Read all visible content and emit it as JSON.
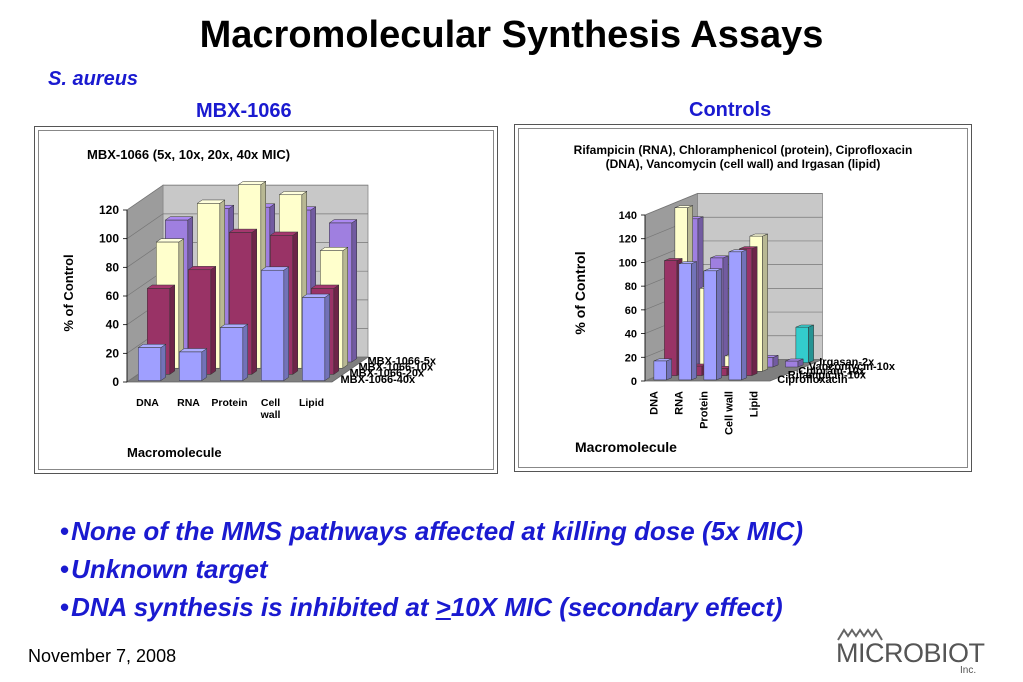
{
  "slide": {
    "title": "Macromolecular Synthesis Assays",
    "organism": "S. aureus",
    "left_heading": "MBX-1066",
    "right_heading": "Controls",
    "bullets": [
      {
        "text": "None of the MMS pathways affected at killing dose (5x MIC)"
      },
      {
        "text": "Unknown target"
      },
      {
        "pre": "DNA synthesis is inhibited at ",
        "underlined": ">",
        "post": "10X MIC (secondary effect)"
      }
    ],
    "date": "November 7, 2008",
    "logo": {
      "name": "MICROBIOTIX",
      "suffix": "Inc."
    }
  },
  "chart_data": [
    {
      "type": "bar",
      "subtype": "3d-clustered-depth",
      "title": "MBX-1066 (5x, 10x, 20x, 40x MIC)",
      "xlabel": "Macromolecule",
      "ylabel": "% of Control",
      "ylim": [
        0,
        120
      ],
      "yticks": [
        0,
        20,
        40,
        60,
        80,
        100,
        120
      ],
      "categories": [
        "DNA",
        "RNA",
        "Protein",
        "Cell wall",
        "Lipid"
      ],
      "series": [
        {
          "name": "MBX-1066-40x",
          "color": "#9f9fff",
          "values": [
            23,
            20,
            37,
            77,
            58
          ]
        },
        {
          "name": "MBX-1066-20x",
          "color": "#993366",
          "values": [
            60,
            73,
            99,
            97,
            60
          ]
        },
        {
          "name": "MBX-1066-10x",
          "color": "#ffffcc",
          "values": [
            88,
            115,
            128,
            121,
            82
          ]
        },
        {
          "name": "MBX-1066-5x",
          "color": "#9f7fe0",
          "values": [
            99,
            107,
            108,
            106,
            97
          ]
        }
      ]
    },
    {
      "type": "bar",
      "subtype": "3d-clustered-depth",
      "title": "Rifampicin (RNA), Chloramphenicol (protein), Ciprofloxacin (DNA), Vancomycin (cell wall) and Irgasan (lipid)",
      "xlabel": "Macromolecule",
      "ylabel": "% of Control",
      "ylim": [
        0,
        140
      ],
      "yticks": [
        0,
        20,
        40,
        60,
        80,
        100,
        120,
        140
      ],
      "categories": [
        "DNA",
        "RNA",
        "Protein",
        "Cell wall",
        "Lipid"
      ],
      "series": [
        {
          "name": "Ciprofloxacin",
          "color": "#9f9fff",
          "values": [
            16,
            98,
            92,
            108,
            0
          ]
        },
        {
          "name": "Rifampicin-10x",
          "color": "#993366",
          "values": [
            97,
            8,
            6,
            107,
            0
          ]
        },
        {
          "name": "Chloram-10x",
          "color": "#ffffcc",
          "values": [
            138,
            70,
            13,
            114,
            0
          ]
        },
        {
          "name": "Vancomycin-10x",
          "color": "#9f7fe0",
          "values": [
            125,
            92,
            45,
            8,
            5
          ]
        },
        {
          "name": "Irgasan-2x",
          "color": "#33cccc",
          "values": [
            0,
            0,
            0,
            0,
            30
          ]
        }
      ]
    }
  ]
}
